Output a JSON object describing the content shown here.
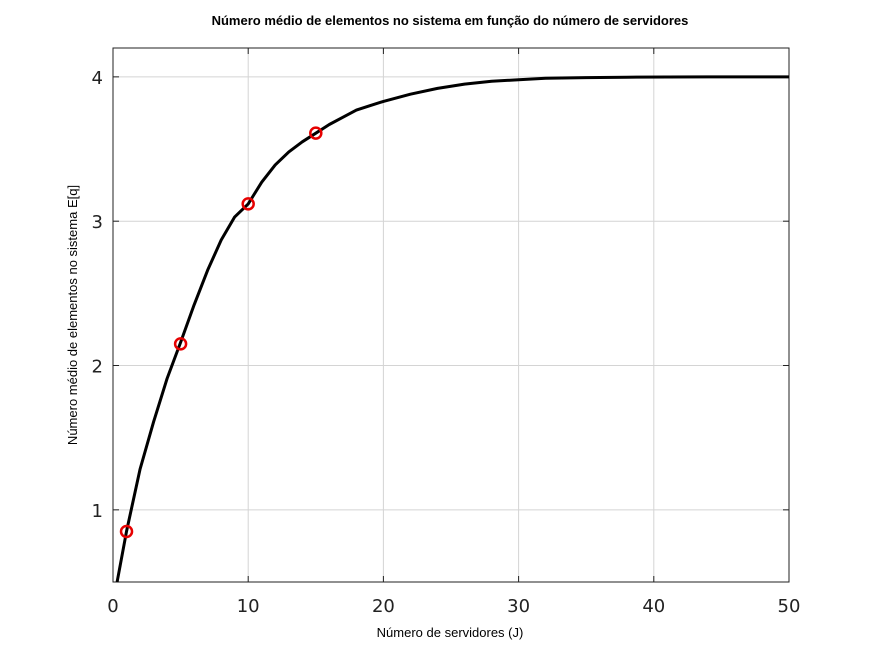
{
  "chart_data": {
    "type": "line",
    "title": "Número médio de elementos no sistema em função do número de servidores",
    "xlabel": "Número de servidores (J)",
    "ylabel": "Número médio de elementos no sistema E[q]",
    "xlim": [
      0,
      50
    ],
    "ylim": [
      0.5,
      4.2
    ],
    "xticks": [
      0,
      10,
      20,
      30,
      40,
      50
    ],
    "yticks": [
      1,
      2,
      3,
      4
    ],
    "grid": true,
    "series": [
      {
        "style": "line",
        "color": "#000000",
        "x": [
          0.3,
          1,
          2,
          3,
          4,
          5,
          6,
          7,
          8,
          9,
          10,
          11,
          12,
          13,
          14,
          15,
          16,
          17,
          18,
          19,
          20,
          22,
          24,
          26,
          28,
          30,
          32,
          35,
          38,
          41,
          44,
          47,
          50
        ],
        "y": [
          0.5,
          0.85,
          1.28,
          1.61,
          1.91,
          2.16,
          2.42,
          2.66,
          2.87,
          3.03,
          3.12,
          3.27,
          3.39,
          3.48,
          3.55,
          3.61,
          3.67,
          3.72,
          3.77,
          3.8,
          3.83,
          3.88,
          3.92,
          3.95,
          3.97,
          3.98,
          3.99,
          3.995,
          3.998,
          3.999,
          4.0,
          4.0,
          4.0
        ]
      },
      {
        "style": "markers",
        "marker": "circle",
        "color": "#e60000",
        "x": [
          1,
          5,
          10,
          15
        ],
        "y": [
          0.85,
          2.15,
          3.12,
          3.61
        ]
      }
    ]
  }
}
